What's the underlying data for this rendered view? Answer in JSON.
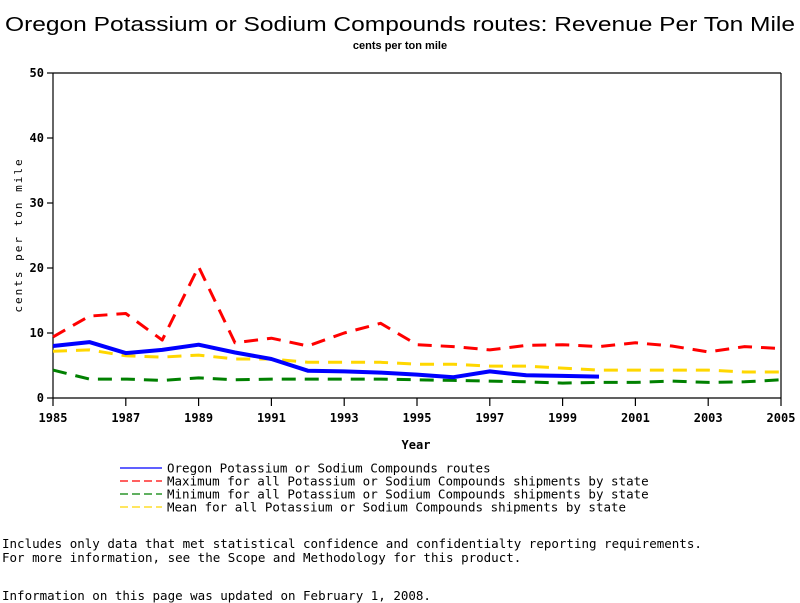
{
  "chart_data": {
    "type": "line",
    "title": "Oregon Potassium or Sodium Compounds routes: Revenue Per Ton Mile",
    "subtitle": "cents per ton mile",
    "xlabel": "Year",
    "ylabel": "cents per ton mile",
    "xlim": [
      1985,
      2005
    ],
    "ylim": [
      0,
      50
    ],
    "x_ticks": [
      "1985",
      "1987",
      "1989",
      "1991",
      "1993",
      "1995",
      "1997",
      "1999",
      "2001",
      "2003",
      "2005"
    ],
    "y_ticks": [
      "0",
      "10",
      "20",
      "30",
      "40",
      "50"
    ],
    "grid": false,
    "legend_position": "bottom",
    "x": [
      1985,
      1986,
      1987,
      1988,
      1989,
      1990,
      1991,
      1992,
      1993,
      1994,
      1995,
      1996,
      1997,
      1998,
      1999,
      2000,
      2001,
      2002,
      2003,
      2004,
      2005
    ],
    "series": [
      {
        "name": "Oregon Potassium or Sodium Compounds routes",
        "color": "#0000ff",
        "style": "solid",
        "values": [
          8.0,
          8.6,
          6.9,
          7.4,
          8.2,
          7.0,
          6.0,
          4.2,
          4.1,
          3.9,
          3.6,
          3.2,
          4.1,
          3.5,
          3.4,
          3.3,
          null,
          null,
          null,
          null,
          null
        ]
      },
      {
        "name": "Maximum for all Potassium or Sodium Compounds shipments by state",
        "color": "#ff0000",
        "style": "dashed",
        "values": [
          9.4,
          12.6,
          13.0,
          8.9,
          20.2,
          8.5,
          9.2,
          8.0,
          10.0,
          11.5,
          8.2,
          7.9,
          7.4,
          8.1,
          8.2,
          7.9,
          8.5,
          8.0,
          7.1,
          7.9,
          7.6
        ]
      },
      {
        "name": "Minimum for all Potassium or Sodium Compounds shipments by state",
        "color": "#008000",
        "style": "dashed",
        "values": [
          4.3,
          2.9,
          2.9,
          2.7,
          3.1,
          2.8,
          2.9,
          2.9,
          2.9,
          2.9,
          2.8,
          2.7,
          2.6,
          2.5,
          2.3,
          2.4,
          2.4,
          2.6,
          2.4,
          2.5,
          2.8
        ]
      },
      {
        "name": "Mean for all Potassium or Sodium Compounds shipments by state",
        "color": "#ffd700",
        "style": "dashed",
        "values": [
          7.2,
          7.4,
          6.5,
          6.3,
          6.6,
          6.0,
          6.0,
          5.5,
          5.5,
          5.5,
          5.2,
          5.2,
          4.9,
          4.9,
          4.6,
          4.3,
          4.3,
          4.3,
          4.3,
          4.0,
          4.0
        ]
      }
    ]
  },
  "notes": {
    "line1": "Includes only data that met statistical confidence and confidentialty reporting requirements.",
    "line2": "For more information, see the Scope and Methodology for this product.",
    "updated": "Information on this page was updated on February 1, 2008."
  }
}
